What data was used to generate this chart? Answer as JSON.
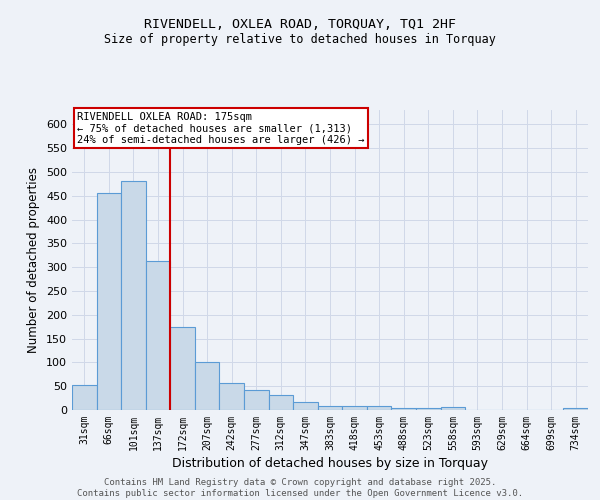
{
  "title_line1": "RIVENDELL, OXLEA ROAD, TORQUAY, TQ1 2HF",
  "title_line2": "Size of property relative to detached houses in Torquay",
  "xlabel": "Distribution of detached houses by size in Torquay",
  "ylabel": "Number of detached properties",
  "bar_labels": [
    "31sqm",
    "66sqm",
    "101sqm",
    "137sqm",
    "172sqm",
    "207sqm",
    "242sqm",
    "277sqm",
    "312sqm",
    "347sqm",
    "383sqm",
    "418sqm",
    "453sqm",
    "488sqm",
    "523sqm",
    "558sqm",
    "593sqm",
    "629sqm",
    "664sqm",
    "699sqm",
    "734sqm"
  ],
  "bar_values": [
    53,
    456,
    480,
    313,
    175,
    100,
    57,
    42,
    32,
    16,
    9,
    8,
    9,
    5,
    5,
    6,
    1,
    0,
    1,
    0,
    4
  ],
  "bar_color": "#c9d9e8",
  "bar_edge_color": "#5b9bd5",
  "vline_x": 3.5,
  "vline_color": "#cc0000",
  "annotation_text": "RIVENDELL OXLEA ROAD: 175sqm\n← 75% of detached houses are smaller (1,313)\n24% of semi-detached houses are larger (426) →",
  "annotation_box_color": "#ffffff",
  "annotation_box_edge_color": "#cc0000",
  "ylim": [
    0,
    630
  ],
  "yticks": [
    0,
    50,
    100,
    150,
    200,
    250,
    300,
    350,
    400,
    450,
    500,
    550,
    600
  ],
  "grid_color": "#d0d8e8",
  "footer_text": "Contains HM Land Registry data © Crown copyright and database right 2025.\nContains public sector information licensed under the Open Government Licence v3.0.",
  "bg_color": "#eef2f8"
}
